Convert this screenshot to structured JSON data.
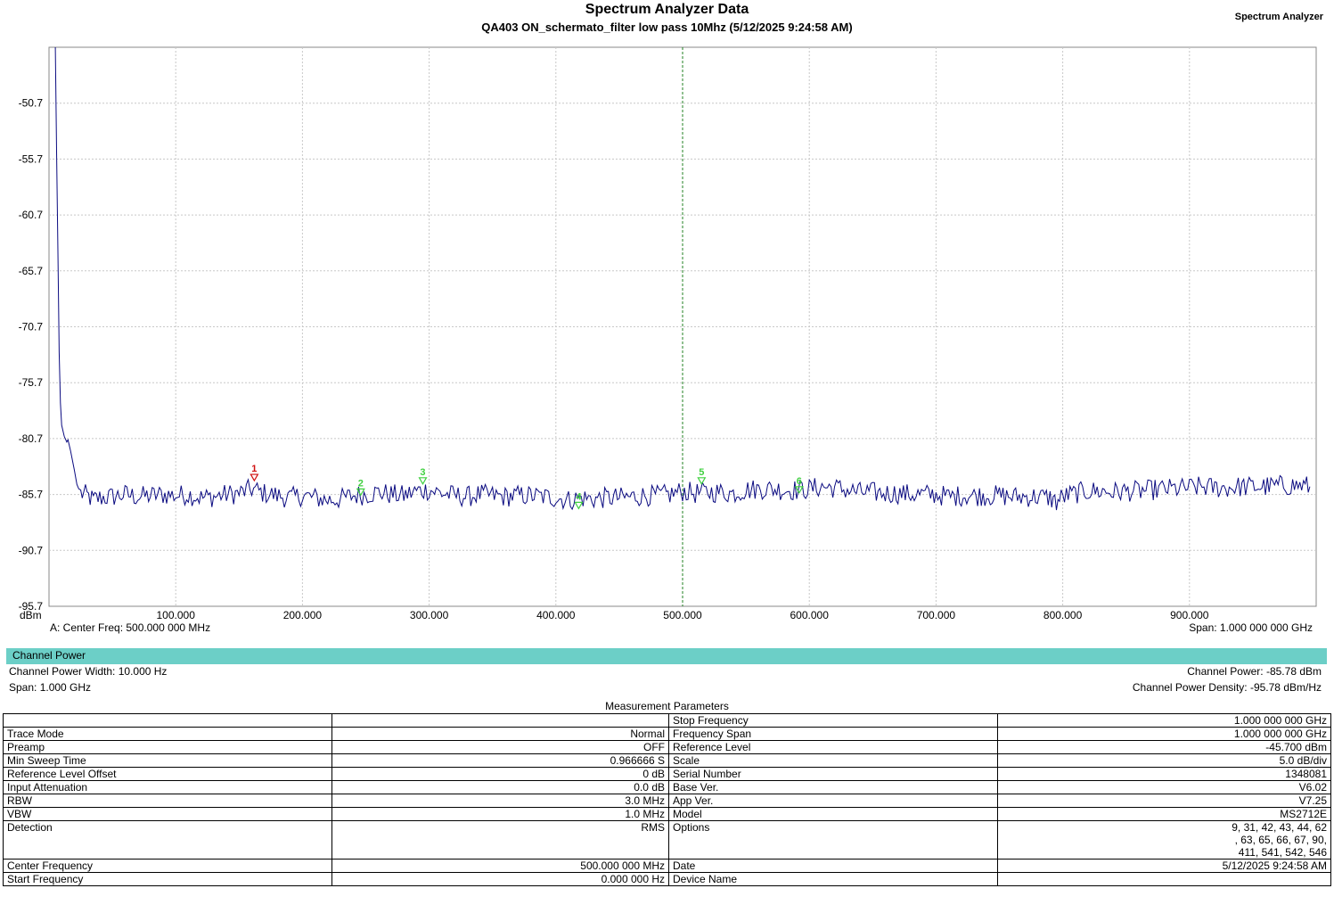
{
  "header": {
    "title": "Spectrum Analyzer Data",
    "subtitle": "QA403 ON_schermato_filter low pass 10Mhz (5/12/2025 9:24:58 AM)",
    "brand": "Spectrum Analyzer"
  },
  "chart_data": {
    "type": "line",
    "ylabel": "dBm",
    "ylim": [
      -95.7,
      -45.7
    ],
    "xlim": [
      0,
      1000
    ],
    "yticks": [
      "-50.7",
      "-55.7",
      "-60.7",
      "-65.7",
      "-70.7",
      "-75.7",
      "-80.7",
      "-85.7",
      "-90.7",
      "-95.7"
    ],
    "xticks": [
      "100.000",
      "200.000",
      "300.000",
      "400.000",
      "500.000",
      "600.000",
      "700.000",
      "800.000",
      "900.000"
    ],
    "grid": true,
    "center_line_x": 500,
    "trace_color": "#0a0a80",
    "series": [
      {
        "x": [
          5,
          6,
          7,
          8,
          9,
          10,
          12,
          14,
          15,
          17,
          20,
          22,
          25,
          30,
          35,
          40,
          50,
          60,
          70,
          80,
          90,
          100,
          110,
          120,
          130,
          140,
          150,
          160,
          170,
          180,
          190,
          200,
          210,
          220,
          230,
          240,
          250,
          260,
          270,
          280,
          290,
          300,
          310,
          320,
          330,
          340,
          350,
          360,
          370,
          380,
          390,
          400,
          410,
          420,
          430,
          440,
          450,
          460,
          470,
          480,
          490,
          500,
          510,
          520,
          530,
          540,
          550,
          560,
          570,
          580,
          590,
          600,
          610,
          620,
          630,
          640,
          650,
          660,
          670,
          680,
          690,
          700,
          710,
          720,
          730,
          740,
          750,
          760,
          770,
          780,
          790,
          795,
          800,
          810,
          820,
          830,
          840,
          850,
          860,
          870,
          880,
          890,
          900,
          910,
          920,
          930,
          940,
          950,
          960,
          970,
          980,
          990,
          995
        ],
        "values": [
          -45.7,
          -55.0,
          -64.0,
          -73.0,
          -77.5,
          -79.5,
          -80.5,
          -81.0,
          -80.8,
          -81.8,
          -83.5,
          -84.8,
          -85.6,
          -85.8,
          -86.2,
          -86.0,
          -85.9,
          -85.7,
          -85.9,
          -85.8,
          -85.7,
          -85.8,
          -85.7,
          -86.0,
          -85.9,
          -85.7,
          -85.6,
          -85.2,
          -85.6,
          -85.8,
          -86.0,
          -85.8,
          -86.0,
          -86.2,
          -86.1,
          -85.8,
          -85.7,
          -85.5,
          -85.7,
          -85.8,
          -85.4,
          -85.3,
          -85.6,
          -85.8,
          -85.9,
          -85.7,
          -85.8,
          -85.9,
          -85.8,
          -85.8,
          -85.9,
          -86.0,
          -86.2,
          -86.0,
          -86.1,
          -86.0,
          -86.0,
          -85.9,
          -85.8,
          -85.8,
          -85.7,
          -85.4,
          -85.6,
          -85.5,
          -85.5,
          -85.6,
          -85.3,
          -85.2,
          -85.2,
          -85.3,
          -85.3,
          -85.2,
          -85.0,
          -85.1,
          -85.3,
          -85.5,
          -85.5,
          -85.6,
          -85.6,
          -85.7,
          -85.7,
          -85.7,
          -85.9,
          -85.8,
          -85.8,
          -85.8,
          -85.8,
          -85.9,
          -85.9,
          -85.9,
          -86.0,
          -86.4,
          -85.9,
          -85.6,
          -85.4,
          -85.4,
          -85.5,
          -85.4,
          -85.4,
          -85.3,
          -85.2,
          -85.2,
          -85.1,
          -85.0,
          -85.1,
          -85.1,
          -85.0,
          -85.0,
          -85.0,
          -84.9,
          -84.9,
          -84.9,
          -85.0
        ]
      }
    ],
    "markers": [
      {
        "label": "1",
        "x": 162,
        "y": -84.3,
        "color": "#d01010"
      },
      {
        "label": "2",
        "x": 246,
        "y": -85.6,
        "color": "#40d040"
      },
      {
        "label": "3",
        "x": 295,
        "y": -84.6,
        "color": "#40d040"
      },
      {
        "label": "4",
        "x": 418,
        "y": -86.8,
        "color": "#40d040"
      },
      {
        "label": "5",
        "x": 515,
        "y": -84.6,
        "color": "#40d040"
      },
      {
        "label": "6",
        "x": 592,
        "y": -85.4,
        "color": "#40d040"
      }
    ]
  },
  "chart_footer": {
    "center_freq": "A: Center Freq: 500.000 000 MHz",
    "span": "Span: 1.000 000 000 GHz"
  },
  "channel_power": {
    "header": "Channel Power",
    "width": "Channel Power Width: 10.000 Hz",
    "span": "Span: 1.000 GHz",
    "power": "Channel Power: -85.78 dBm",
    "density": "Channel Power Density: -95.78 dBm/Hz"
  },
  "measurement": {
    "title": "Measurement Parameters",
    "rows": [
      {
        "l1": "",
        "v1": "",
        "l2": "Stop Frequency",
        "v2": "1.000 000 000 GHz"
      },
      {
        "l1": "Trace Mode",
        "v1": "Normal",
        "l2": "Frequency Span",
        "v2": "1.000 000 000 GHz"
      },
      {
        "l1": "Preamp",
        "v1": "OFF",
        "l2": "Reference Level",
        "v2": "-45.700  dBm"
      },
      {
        "l1": "Min Sweep Time",
        "v1": "0.966666 S",
        "l2": "Scale",
        "v2": "5.0  dB/div"
      },
      {
        "l1": "Reference Level Offset",
        "v1": "0 dB",
        "l2": "Serial Number",
        "v2": "1348081"
      },
      {
        "l1": "Input Attenuation",
        "v1": "0.0 dB",
        "l2": "Base Ver.",
        "v2": "V6.02"
      },
      {
        "l1": "RBW",
        "v1": "3.0 MHz",
        "l2": "App Ver.",
        "v2": "V7.25"
      },
      {
        "l1": "VBW",
        "v1": "1.0 MHz",
        "l2": "Model",
        "v2": "MS2712E"
      },
      {
        "l1": "Detection",
        "v1": "RMS",
        "l2": "Options",
        "v2": "9, 31, 42, 43, 44, 62\n, 63, 65, 66, 67, 90,\n411, 541, 542, 546"
      },
      {
        "l1": "Center Frequency",
        "v1": "500.000 000 MHz",
        "l2": "Date",
        "v2": "5/12/2025 9:24:58 AM"
      },
      {
        "l1": "Start Frequency",
        "v1": "0.000 000 Hz",
        "l2": "Device Name",
        "v2": ""
      }
    ]
  }
}
